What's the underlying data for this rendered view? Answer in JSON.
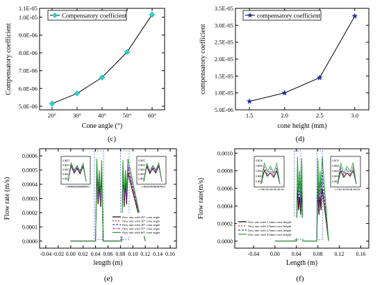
{
  "chart_data": [
    {
      "panel": "(c)",
      "type": "line",
      "xlabel": "Cone angle (°)",
      "ylabel": "Compensatory coefficient",
      "categories": [
        "20°",
        "30°",
        "40°",
        "50°",
        "60°"
      ],
      "x": [
        20,
        30,
        40,
        50,
        60
      ],
      "ylim": [
        4.8e-06,
        1.05e-05
      ],
      "yticks": [
        "5.0E-06",
        "6.0E-06",
        "7.0E-06",
        "8.0E-06",
        "9.0E-06",
        "1.0E-05"
      ],
      "ytick_values": [
        5e-06,
        6e-06,
        7e-06,
        8e-06,
        9e-06,
        1e-05
      ],
      "top_tick": "1.1E-05",
      "series": [
        {
          "name": "Compensatory coefficient",
          "marker": "diamond",
          "color": "#2fd3d3",
          "values": [
            5.15e-06,
            5.72e-06,
            6.62e-06,
            8.05e-06,
            1.015e-05
          ]
        }
      ],
      "legend": "top-left"
    },
    {
      "panel": "(d)",
      "type": "line",
      "xlabel": "cone height (mm)",
      "ylabel": "compensatory coefficient",
      "x": [
        1.5,
        2.0,
        2.5,
        3.0
      ],
      "xticks": [
        "1.5",
        "2.0",
        "2.5",
        "3.0"
      ],
      "xlim": [
        1.3,
        3.2
      ],
      "ylim": [
        5e-06,
        3.5e-05
      ],
      "yticks": [
        "5.0E-06",
        "1.0E-05",
        "1.5E-05",
        "2.0E-05",
        "2.5E-05",
        "3.0E-05",
        "3.5E-05"
      ],
      "ytick_values": [
        5e-06,
        1e-05,
        1.5e-05,
        2e-05,
        2.5e-05,
        3e-05,
        3.5e-05
      ],
      "series": [
        {
          "name": "compensatory coefficient",
          "marker": "star",
          "color": "#1a2fa8",
          "values": [
            7.5e-06,
            1e-05,
            1.45e-05,
            3.27e-05
          ]
        }
      ],
      "legend": "top-left"
    },
    {
      "panel": "(e)",
      "type": "line",
      "xlabel": "length (m)",
      "ylabel": "Flow rate (m/s)",
      "xlim": [
        -0.05,
        0.17
      ],
      "xticks": [
        "-0.04",
        "-0.02",
        "0.00",
        "0.02",
        "0.04",
        "0.06",
        "0.08",
        "0.10",
        "0.12",
        "0.14",
        "0.16"
      ],
      "xtick_values": [
        -0.04,
        -0.02,
        0,
        0.02,
        0.04,
        0.06,
        0.08,
        0.1,
        0.12,
        0.14,
        0.16
      ],
      "ylim": [
        -5e-05,
        0.00065
      ],
      "yticks": [
        "0.0000",
        "0.0001",
        "0.0002",
        "0.0003",
        "0.0004",
        "0.0005",
        "0.0006"
      ],
      "ytick_values": [
        0,
        0.0001,
        0.0002,
        0.0003,
        0.0004,
        0.0005,
        0.0006
      ],
      "series": [
        {
          "name": "flow rate with 20° cone angle",
          "color": "#000000",
          "dash": "",
          "x": [
            0.0,
            0.04,
            0.042,
            0.044,
            0.046,
            0.048,
            0.05,
            0.052,
            0.082,
            0.084,
            0.086,
            0.088,
            0.09,
            0.092,
            0.12
          ],
          "values": [
            0,
            0,
            0.00048,
            0.00026,
            0.0004,
            0.00024,
            0.00047,
            0,
            0,
            0.00047,
            0.00024,
            0.0004,
            0.00026,
            0.00048,
            0
          ]
        },
        {
          "name": "flow rate with 30° cone angle",
          "color": "#e0242a",
          "dash": "2,2",
          "x": [
            0.0,
            0.04,
            0.042,
            0.044,
            0.046,
            0.048,
            0.05,
            0.052,
            0.082,
            0.084,
            0.086,
            0.088,
            0.09,
            0.092,
            0.12
          ],
          "values": [
            0,
            0,
            0.0005,
            0.00028,
            0.00043,
            0.00026,
            0.00049,
            0,
            0,
            0.00049,
            0.00026,
            0.00043,
            0.00028,
            0.0005,
            0
          ]
        },
        {
          "name": "flow rate with 40° cone angle",
          "color": "#2a3fc0",
          "dash": "3,2",
          "x": [
            0.0,
            0.04,
            0.042,
            0.044,
            0.046,
            0.048,
            0.05,
            0.052,
            0.082,
            0.084,
            0.086,
            0.088,
            0.09,
            0.092,
            0.12
          ],
          "values": [
            0,
            0,
            0.00052,
            0.0003,
            0.00045,
            0.00028,
            0.00051,
            0,
            0,
            0.00051,
            0.00028,
            0.00045,
            0.0003,
            0.00052,
            0
          ]
        },
        {
          "name": "flow rate with 50° cone angle",
          "color": "#b02fb0",
          "dash": "4,1,1,1",
          "x": [
            0.0,
            0.04,
            0.042,
            0.044,
            0.046,
            0.048,
            0.05,
            0.052,
            0.082,
            0.084,
            0.086,
            0.088,
            0.09,
            0.092,
            0.12
          ],
          "values": [
            0,
            0,
            0.00054,
            0.00033,
            0.00047,
            0.0003,
            0.00053,
            0,
            0,
            0.00053,
            0.0003,
            0.00047,
            0.00033,
            0.00054,
            0
          ]
        },
        {
          "name": "flow rate with 60° cone angle",
          "color": "#22a02a",
          "dash": "",
          "x": [
            0.0,
            0.04,
            0.042,
            0.044,
            0.046,
            0.048,
            0.05,
            0.052,
            0.082,
            0.084,
            0.086,
            0.088,
            0.09,
            0.092,
            0.12
          ],
          "values": [
            0,
            0,
            0.00058,
            0.00036,
            0.0005,
            0.00033,
            0.00057,
            0,
            0,
            0.00057,
            0.00033,
            0.0005,
            0.00036,
            0.00058,
            0
          ]
        }
      ],
      "insets": [
        {
          "ytick_labels": [
            "0.0005",
            "0.0004",
            "0.0003",
            "0.0002",
            "0.0001"
          ],
          "xtick_labels": [
            "0.038",
            "0.040",
            "0.042",
            "0.044",
            "0.046",
            "0.048",
            "0.050",
            "0.052"
          ]
        },
        {
          "ytick_labels": [
            "0.0005",
            "0.0004",
            "0.0003",
            "0.0002",
            "0.0001"
          ],
          "xtick_labels": [
            "0.080",
            "0.082",
            "0.084",
            "0.086",
            "0.088",
            "0.090",
            "0.092"
          ]
        }
      ],
      "legend": "bottom-right"
    },
    {
      "panel": "(f)",
      "type": "line",
      "xlabel": "Length (m)",
      "ylabel": "Flow rate(m/s)",
      "xlim": [
        -0.075,
        0.175
      ],
      "xticks": [
        "-0.04",
        "0.00",
        "0.04",
        "0.08",
        "0.12",
        "0.16"
      ],
      "xtick_values": [
        -0.04,
        0,
        0.04,
        0.08,
        0.12,
        0.16
      ],
      "ylim": [
        -8e-05,
        0.00105
      ],
      "yticks": [
        "0.0000",
        "0.0002",
        "0.0004",
        "0.0006",
        "0.0008",
        "0.0010"
      ],
      "ytick_values": [
        0,
        0.0002,
        0.0004,
        0.0006,
        0.0008,
        0.001
      ],
      "series": [
        {
          "name": "flow rate with 1.5mm cone height",
          "color": "#000000",
          "dash": "",
          "x": [
            0.0,
            0.04,
            0.042,
            0.044,
            0.046,
            0.048,
            0.05,
            0.052,
            0.078,
            0.08,
            0.082,
            0.084,
            0.086,
            0.088,
            0.1
          ],
          "values": [
            0,
            0,
            0.0006,
            0.00035,
            0.0005,
            0.0003,
            0.00058,
            0,
            0,
            0.00058,
            0.0003,
            0.0005,
            0.00035,
            0.0006,
            0
          ]
        },
        {
          "name": "flow rate with 2.0mm cone height",
          "color": "#e0242a",
          "dash": "2,2",
          "x": [
            0.0,
            0.04,
            0.042,
            0.044,
            0.046,
            0.048,
            0.05,
            0.052,
            0.078,
            0.08,
            0.082,
            0.084,
            0.086,
            0.088,
            0.1
          ],
          "values": [
            0,
            0,
            0.00068,
            0.0004,
            0.00058,
            0.00036,
            0.00066,
            0,
            0,
            0.00066,
            0.00036,
            0.00058,
            0.0004,
            0.00068,
            0
          ]
        },
        {
          "name": "flow rate with 2.5mm cone height",
          "color": "#2a3fc0",
          "dash": "3,2",
          "x": [
            0.0,
            0.04,
            0.042,
            0.044,
            0.046,
            0.048,
            0.05,
            0.052,
            0.078,
            0.08,
            0.082,
            0.084,
            0.086,
            0.088,
            0.1
          ],
          "values": [
            0,
            0,
            0.00078,
            0.00045,
            0.00068,
            0.0004,
            0.00076,
            0,
            0,
            0.00076,
            0.0004,
            0.00068,
            0.00045,
            0.00078,
            0
          ]
        },
        {
          "name": "flow rate with 3.0mm cone height",
          "color": "#22a02a",
          "dash": "",
          "x": [
            0.0,
            0.04,
            0.042,
            0.044,
            0.046,
            0.048,
            0.05,
            0.052,
            0.078,
            0.08,
            0.082,
            0.084,
            0.086,
            0.088,
            0.1
          ],
          "values": [
            0,
            0,
            0.00096,
            0.00055,
            0.0008,
            0.0005,
            0.00094,
            0,
            0,
            0.00094,
            0.0005,
            0.0008,
            0.00055,
            0.00096,
            0
          ]
        }
      ],
      "insets": [
        {
          "ytick_labels": [
            "0.0010",
            "0.0008",
            "0.0006",
            "0.0004",
            "0.0002"
          ],
          "xtick_labels": [
            "0.038",
            "0.040",
            "0.042",
            "0.044",
            "0.046",
            "0.048"
          ]
        },
        {
          "ytick_labels": [
            "0.0010",
            "0.0008",
            "0.0006",
            "0.0004",
            "0.0002"
          ],
          "xtick_labels": [
            "0.076",
            "0.078",
            "0.080",
            "0.082",
            "0.084",
            "0.086"
          ]
        }
      ],
      "legend": "bottom-left"
    }
  ]
}
